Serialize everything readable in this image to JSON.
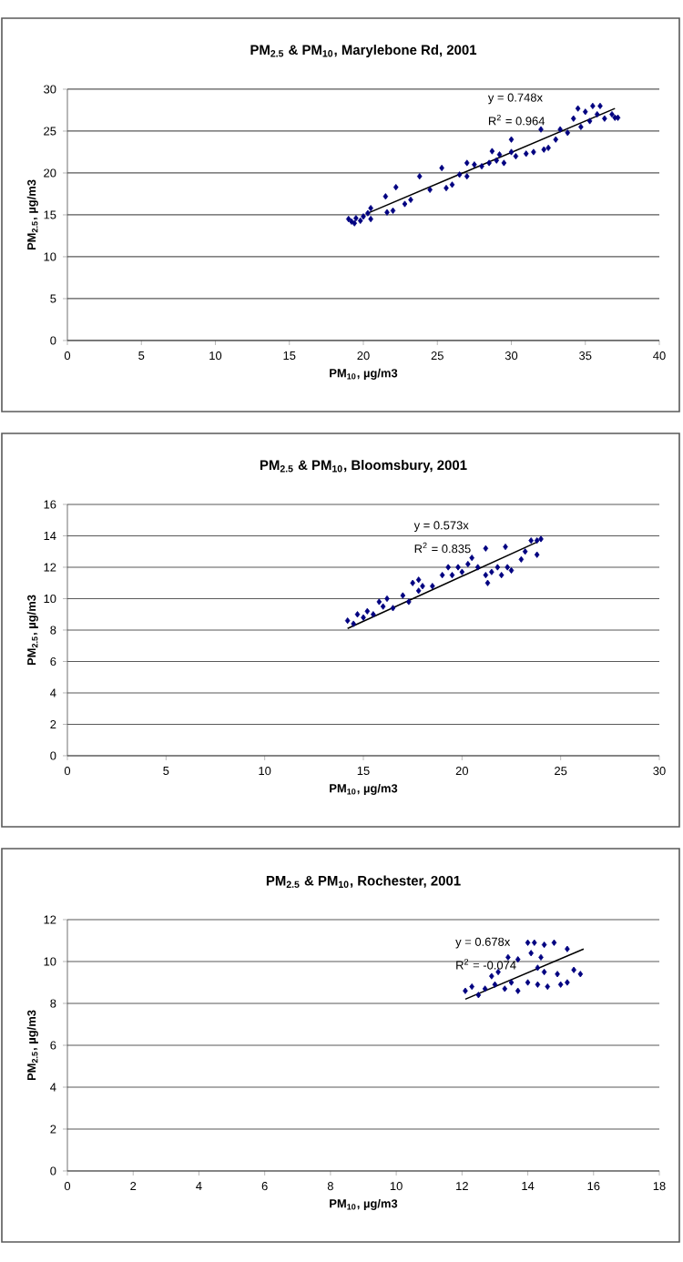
{
  "chart_data": [
    {
      "type": "scatter",
      "title": "PM$_{2.5}$ & PM$_{10}$, Marylebone Rd, 2001",
      "xlabel": "PM$_{10}$, µg/m3",
      "ylabel": "PM$_{2.5}$, µg/m3",
      "annotations": [
        "y = 0.748x",
        "R$^{2}$ = 0.964"
      ],
      "xlim": [
        0,
        40
      ],
      "ylim": [
        0,
        30
      ],
      "xticks": [
        0,
        5,
        10,
        15,
        20,
        25,
        30,
        35,
        40
      ],
      "yticks": [
        0,
        5,
        10,
        15,
        20,
        25,
        30
      ],
      "grid": "y",
      "marker": "diamond",
      "series": [
        {
          "color": "#000080",
          "x": [
            19,
            19.2,
            19.4,
            19.5,
            19.8,
            20,
            20.3,
            20.5,
            20.5,
            21.5,
            21.6,
            22,
            22.2,
            22.8,
            23.2,
            23.8,
            24.5,
            25.3,
            25.6,
            26,
            26.5,
            27,
            27,
            27.5,
            28,
            28.5,
            28.7,
            29,
            29.2,
            29.5,
            30,
            30,
            30.3,
            31,
            31.5,
            32,
            32.2,
            32.5,
            33,
            33.3,
            33.8,
            34.2,
            34.5,
            34.7,
            35,
            35.3,
            35.5,
            35.8,
            36,
            36.3,
            36.8,
            37,
            37.2
          ],
          "values": [
            14.5,
            14.2,
            14,
            14.6,
            14.3,
            14.8,
            15.2,
            15.8,
            14.5,
            17.2,
            15.3,
            15.5,
            18.3,
            16.3,
            16.8,
            19.6,
            18,
            20.6,
            18.2,
            18.6,
            19.8,
            19.6,
            21.2,
            21,
            20.8,
            21.2,
            22.6,
            21.5,
            22.2,
            21.2,
            22.5,
            24,
            22,
            22.3,
            22.5,
            25.2,
            22.8,
            23,
            24,
            25.2,
            24.8,
            26.5,
            27.7,
            25.5,
            27.3,
            26.2,
            28,
            27,
            28,
            26.5,
            27,
            26.6,
            26.6
          ]
        },
        {
          "type": "line",
          "color": "#000000",
          "marker": "none",
          "x": [
            20.3,
            37
          ],
          "values": [
            15.2,
            27.7
          ]
        }
      ]
    },
    {
      "type": "scatter",
      "title": "PM$_{2.5}$ & PM$_{10}$, Bloomsbury, 2001",
      "xlabel": "PM$_{10}$, µg/m3",
      "ylabel": "PM$_{2.5}$, µg/m3",
      "annotations": [
        "y = 0.573x",
        "R$^{2}$ = 0.835"
      ],
      "xlim": [
        0,
        30
      ],
      "ylim": [
        0,
        16
      ],
      "xticks": [
        0,
        5,
        10,
        15,
        20,
        25,
        30
      ],
      "yticks": [
        0,
        2,
        4,
        6,
        8,
        10,
        12,
        14,
        16
      ],
      "grid": "y",
      "marker": "diamond",
      "series": [
        {
          "color": "#000080",
          "x": [
            14.2,
            14.5,
            14.7,
            15,
            15.2,
            15.5,
            15.8,
            16,
            16.2,
            16.5,
            17,
            17.3,
            17.5,
            17.8,
            17.8,
            18,
            18.5,
            19,
            19.3,
            19.5,
            19.8,
            20,
            20.3,
            20.5,
            20.8,
            21.2,
            21.2,
            21.3,
            21.5,
            21.8,
            22,
            22.2,
            22.3,
            22.5,
            23,
            23.2,
            23.5,
            23.8,
            23.8,
            24
          ],
          "values": [
            8.6,
            8.4,
            9,
            8.8,
            9.2,
            9,
            9.8,
            9.5,
            10,
            9.4,
            10.2,
            9.8,
            11,
            11.2,
            10.5,
            10.8,
            10.8,
            11.5,
            12,
            11.5,
            12,
            11.7,
            12.2,
            12.6,
            12,
            13.2,
            11.5,
            11,
            11.7,
            12,
            11.5,
            13.3,
            12,
            11.8,
            12.5,
            13,
            13.7,
            12.8,
            13.7,
            13.8
          ]
        },
        {
          "type": "line",
          "color": "#000000",
          "marker": "none",
          "x": [
            14.2,
            23.8
          ],
          "values": [
            8.1,
            13.6
          ]
        }
      ]
    },
    {
      "type": "scatter",
      "title": "PM$_{2.5}$ & PM$_{10}$, Rochester, 2001",
      "xlabel": "PM$_{10}$, µg/m3",
      "ylabel": "PM$_{2.5}$, µg/m3",
      "annotations": [
        "y = 0.678x",
        "R$^{2}$ = -0.074"
      ],
      "xlim": [
        0,
        18
      ],
      "ylim": [
        0,
        12
      ],
      "xticks": [
        0,
        2,
        4,
        6,
        8,
        10,
        12,
        14,
        16,
        18
      ],
      "yticks": [
        0,
        2,
        4,
        6,
        8,
        10,
        12
      ],
      "grid": "y",
      "marker": "diamond",
      "series": [
        {
          "color": "#000080",
          "x": [
            12.1,
            12.3,
            12.5,
            12.7,
            12.9,
            13,
            13.1,
            13.3,
            13.4,
            13.5,
            13.7,
            13.7,
            14.0,
            14.0,
            14.1,
            14.2,
            14.3,
            14.3,
            14.4,
            14.5,
            14.5,
            14.6,
            14.8,
            14.9,
            15.0,
            15.2,
            15.2,
            15.4,
            15.6
          ],
          "values": [
            8.6,
            8.8,
            8.4,
            8.7,
            9.3,
            8.9,
            9.5,
            8.7,
            10.2,
            9.0,
            10.1,
            8.6,
            10.9,
            9.0,
            10.4,
            10.9,
            9.7,
            8.9,
            10.2,
            9.5,
            10.8,
            8.8,
            10.9,
            9.4,
            8.9,
            10.6,
            9.0,
            9.6,
            9.4
          ]
        },
        {
          "type": "line",
          "color": "#000000",
          "marker": "none",
          "x": [
            12.1,
            15.7
          ],
          "values": [
            8.2,
            10.6
          ]
        }
      ]
    }
  ]
}
